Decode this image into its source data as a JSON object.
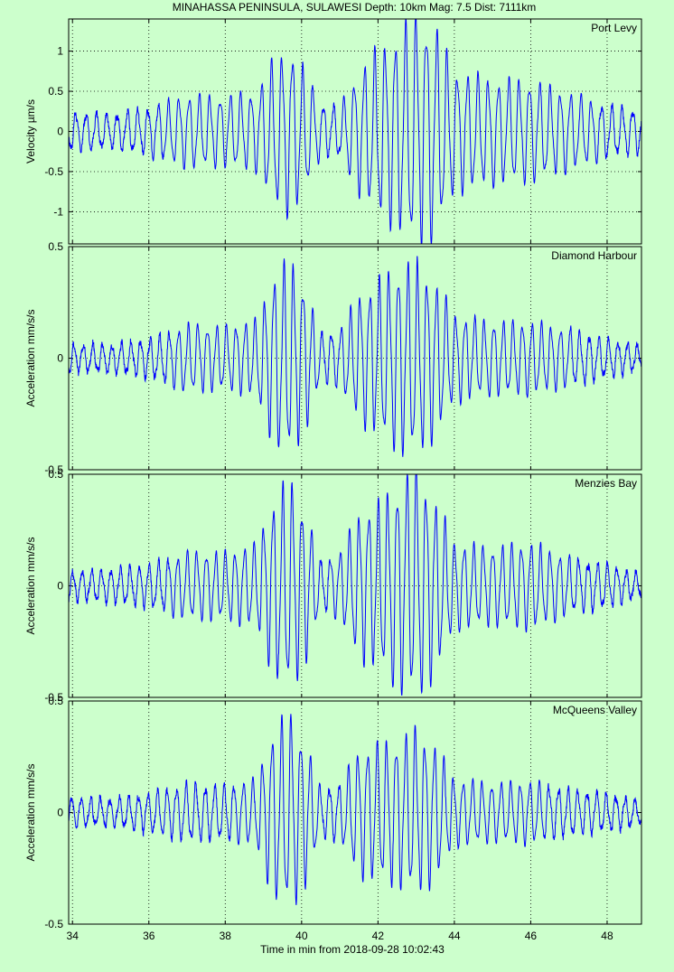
{
  "figure": {
    "title": "MINAHASSA PENINSULA, SULAWESI  Depth: 10km  Mag: 7.5  Dist: 7111km",
    "xlabel": "Time in min from 2018-09-28 10:02:43",
    "background": "#ccffcc",
    "trace_color": "#0000ff"
  },
  "chart_data": [
    {
      "type": "line",
      "station": "Port Levy",
      "ylabel": "Velocity µm/s",
      "xlim": [
        33.9,
        48.9
      ],
      "ylim": [
        -1.4,
        1.4
      ],
      "xticks": [
        34,
        36,
        38,
        40,
        42,
        44,
        46,
        48
      ],
      "yticks": [
        -1,
        -0.5,
        0,
        0.5,
        1
      ],
      "ytick_labels": [
        "-1",
        "-0.5",
        "0",
        "0.5",
        "1"
      ],
      "period_min": 0.27,
      "envelope": {
        "x": [
          33.9,
          35.0,
          36.0,
          37.0,
          38.0,
          38.8,
          39.3,
          39.7,
          40.1,
          40.5,
          41.0,
          41.5,
          42.0,
          42.5,
          43.0,
          43.5,
          44.0,
          45.0,
          46.0,
          47.0,
          48.0,
          48.9
        ],
        "y": [
          0.22,
          0.2,
          0.28,
          0.42,
          0.4,
          0.45,
          0.85,
          0.95,
          0.7,
          0.3,
          0.3,
          0.7,
          0.95,
          1.1,
          1.35,
          1.2,
          0.7,
          0.6,
          0.58,
          0.45,
          0.3,
          0.25
        ]
      }
    },
    {
      "type": "line",
      "station": "Diamond Harbour",
      "ylabel": "Acceleration mm/s/s",
      "xlim": [
        33.9,
        48.9
      ],
      "ylim": [
        -0.5,
        0.5
      ],
      "xticks": [
        34,
        36,
        38,
        40,
        42,
        44,
        46,
        48
      ],
      "yticks": [
        -0.5,
        0,
        0.5
      ],
      "ytick_labels": [
        "-0.5",
        "0",
        "0.5"
      ],
      "period_min": 0.25,
      "envelope": {
        "x": [
          33.9,
          35.0,
          36.0,
          37.0,
          38.0,
          38.8,
          39.3,
          39.7,
          40.1,
          40.5,
          41.0,
          41.5,
          42.0,
          42.5,
          43.0,
          43.5,
          44.0,
          45.0,
          46.0,
          47.0,
          48.0,
          48.9
        ],
        "y": [
          0.06,
          0.06,
          0.08,
          0.14,
          0.13,
          0.16,
          0.36,
          0.4,
          0.3,
          0.1,
          0.12,
          0.26,
          0.32,
          0.38,
          0.4,
          0.32,
          0.18,
          0.15,
          0.15,
          0.12,
          0.08,
          0.05
        ]
      }
    },
    {
      "type": "line",
      "station": "Menzies Bay",
      "ylabel": "Acceleration mm/s/s",
      "xlim": [
        33.9,
        48.9
      ],
      "ylim": [
        -0.5,
        0.5
      ],
      "xticks": [
        34,
        36,
        38,
        40,
        42,
        44,
        46,
        48
      ],
      "yticks": [
        -0.5,
        0,
        0.5
      ],
      "ytick_labels": [
        "-0.5",
        "0",
        "0.5"
      ],
      "period_min": 0.25,
      "envelope": {
        "x": [
          33.9,
          35.0,
          36.0,
          37.0,
          38.0,
          38.8,
          39.3,
          39.7,
          40.1,
          40.5,
          41.0,
          41.5,
          42.0,
          42.5,
          43.0,
          43.5,
          44.0,
          45.0,
          46.0,
          47.0,
          48.0,
          48.9
        ],
        "y": [
          0.06,
          0.07,
          0.09,
          0.14,
          0.14,
          0.17,
          0.38,
          0.43,
          0.32,
          0.1,
          0.14,
          0.3,
          0.34,
          0.42,
          0.48,
          0.36,
          0.18,
          0.16,
          0.18,
          0.12,
          0.09,
          0.05
        ]
      }
    },
    {
      "type": "line",
      "station": "McQueens Valley",
      "ylabel": "Acceleration mm/s/s",
      "xlim": [
        33.9,
        48.9
      ],
      "ylim": [
        -0.5,
        0.5
      ],
      "xticks": [
        34,
        36,
        38,
        40,
        42,
        44,
        46,
        48
      ],
      "yticks": [
        -0.5,
        0,
        0.5
      ],
      "ytick_labels": [
        "-0.5",
        "0",
        "0.5"
      ],
      "period_min": 0.25,
      "envelope": {
        "x": [
          33.9,
          35.0,
          36.0,
          37.0,
          38.0,
          38.8,
          39.3,
          39.7,
          40.1,
          40.5,
          41.0,
          41.5,
          42.0,
          42.5,
          43.0,
          43.5,
          44.0,
          45.0,
          46.0,
          47.0,
          48.0,
          48.9
        ],
        "y": [
          0.06,
          0.06,
          0.08,
          0.12,
          0.11,
          0.14,
          0.36,
          0.4,
          0.3,
          0.1,
          0.12,
          0.26,
          0.28,
          0.3,
          0.34,
          0.28,
          0.14,
          0.12,
          0.13,
          0.1,
          0.08,
          0.05
        ]
      }
    }
  ]
}
